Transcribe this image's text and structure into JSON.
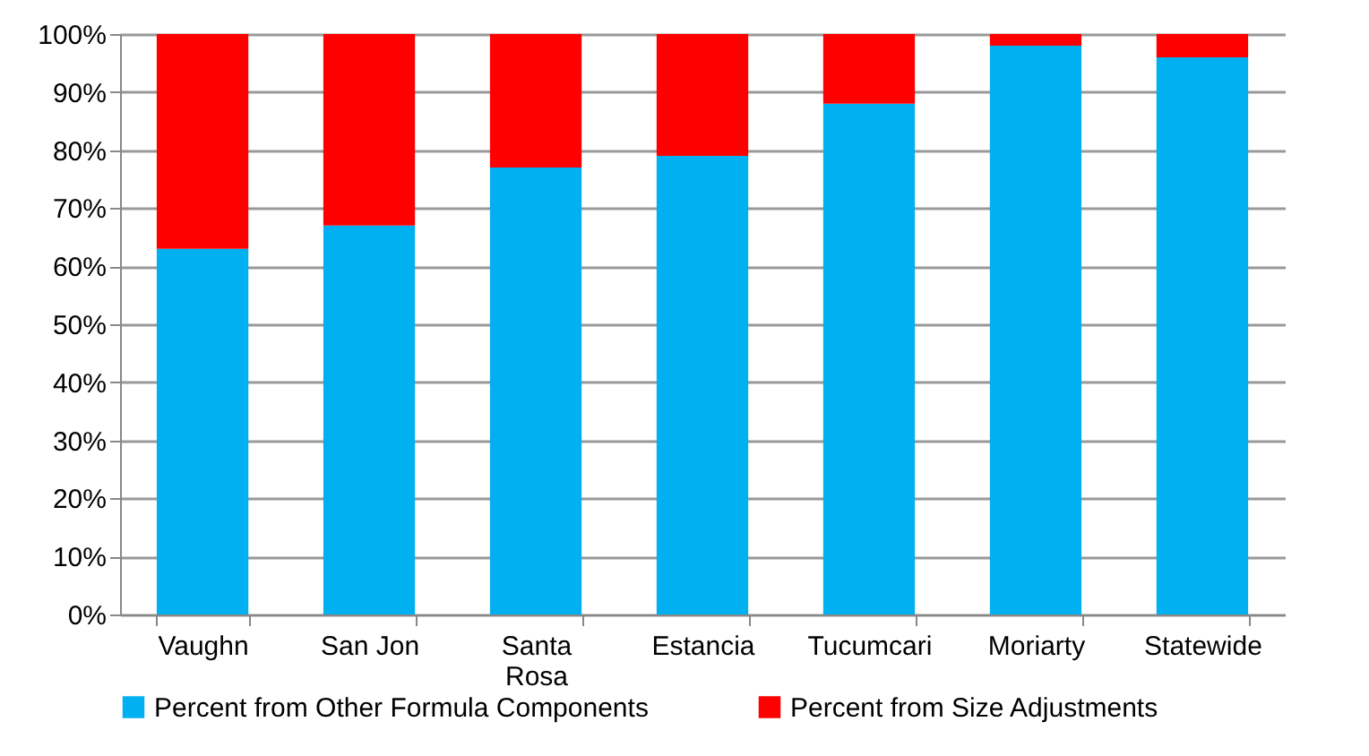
{
  "chart_data": {
    "type": "bar",
    "stacked": true,
    "categories": [
      "Vaughn",
      "San Jon",
      "Santa Rosa",
      "Estancia",
      "Tucumcari",
      "Moriarty",
      "Statewide"
    ],
    "series": [
      {
        "name": "Percent from Other Formula Components",
        "color": "#00b0f0",
        "values": [
          63,
          67,
          77,
          79,
          88,
          98,
          96
        ]
      },
      {
        "name": "Percent from Size Adjustments",
        "color": "#ff0000",
        "values": [
          37,
          33,
          23,
          21,
          12,
          2,
          4
        ]
      }
    ],
    "ylim": [
      0,
      100
    ],
    "yticks": [
      {
        "value": 0,
        "label": "0%"
      },
      {
        "value": 10,
        "label": "10%"
      },
      {
        "value": 20,
        "label": "20%"
      },
      {
        "value": 30,
        "label": "30%"
      },
      {
        "value": 40,
        "label": "40%"
      },
      {
        "value": 50,
        "label": "50%"
      },
      {
        "value": 60,
        "label": "60%"
      },
      {
        "value": 70,
        "label": "70%"
      },
      {
        "value": 80,
        "label": "80%"
      },
      {
        "value": 90,
        "label": "90%"
      },
      {
        "value": 100,
        "label": "100%"
      }
    ],
    "grid": "y",
    "legend": "bottom"
  }
}
